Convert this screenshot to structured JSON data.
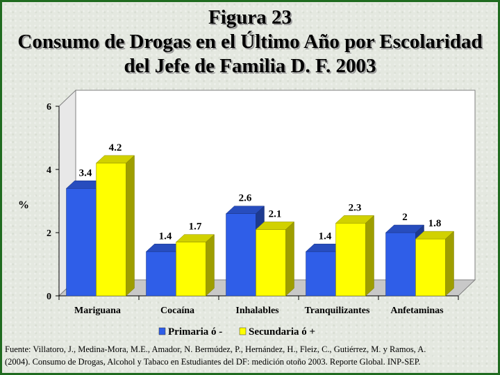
{
  "title": {
    "line1": "Figura 23",
    "line2": "Consumo de Drogas en el Último Año por Escolaridad",
    "line3": "del Jefe de Familia D. F. 2003"
  },
  "chart_data": {
    "type": "bar",
    "ylabel": "%",
    "ylim": [
      0,
      6
    ],
    "yticks": [
      "0",
      "2",
      "4",
      "6"
    ],
    "categories": [
      "Mariguana",
      "Cocaína",
      "Inhalables",
      "Tranquilizantes",
      "Anfetaminas"
    ],
    "series": [
      {
        "name": "Primaria ó -",
        "values": [
          3.4,
          1.4,
          2.6,
          1.4,
          2
        ],
        "labels": [
          "3.4",
          "1.4",
          "2.6",
          "1.4",
          "2"
        ],
        "color": "#2f5ee8"
      },
      {
        "name": "Secundaria ó +",
        "values": [
          4.2,
          1.7,
          2.1,
          2.3,
          1.8
        ],
        "labels": [
          "4.2",
          "1.7",
          "2.1",
          "2.3",
          "1.8"
        ],
        "color": "#ffff00"
      }
    ],
    "legend_position": "bottom",
    "grid": false
  },
  "source": {
    "line1": "Fuente: Villatoro, J., Medina-Mora, M.E., Amador, N. Bermúdez, P., Hernández, H., Fleiz, C., Gutiérrez, M. y Ramos, A.",
    "line2": "(2004). Consumo de Drogas, Alcohol y Tabaco en Estudiantes del DF: medición otoño 2003. Reporte Global. INP-SEP."
  }
}
